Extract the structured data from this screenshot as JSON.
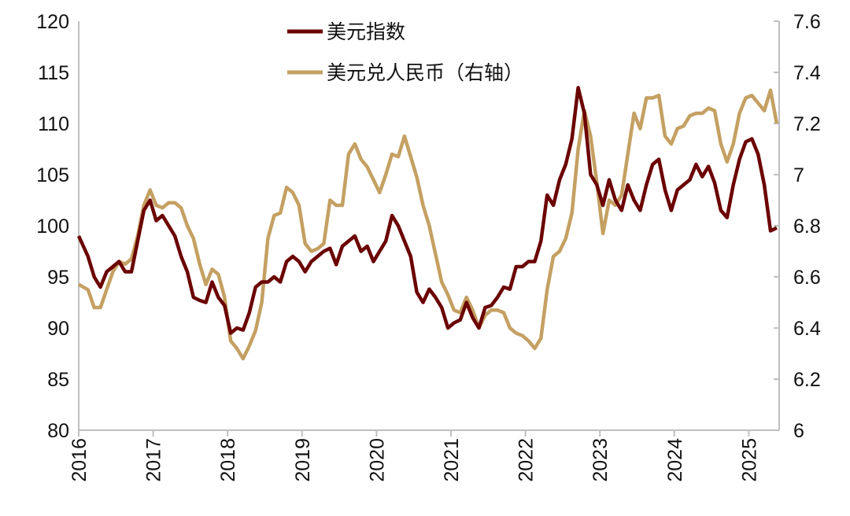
{
  "chart_data": {
    "type": "line",
    "title": "",
    "x_ticks": [
      "2016",
      "2017",
      "2018",
      "2019",
      "2020",
      "2021",
      "2022",
      "2023",
      "2024",
      "2025"
    ],
    "x_range": [
      "2016-01",
      "2025-05"
    ],
    "y_left": {
      "range": [
        80,
        120
      ],
      "ticks": [
        "80",
        "85",
        "90",
        "95",
        "100",
        "105",
        "110",
        "115",
        "120"
      ]
    },
    "y_right": {
      "range": [
        6,
        7.6
      ],
      "ticks": [
        "6",
        "6.2",
        "6.4",
        "6.6",
        "6.8",
        "7",
        "7.2",
        "7.4",
        "7.6"
      ]
    },
    "grid": false,
    "legend_position": "top-center",
    "series": [
      {
        "name": "美元指数",
        "axis": "left",
        "color": "#6b0000",
        "start": "2016-01",
        "frequency": "monthly",
        "values": [
          99,
          97,
          95,
          94,
          95.5,
          96,
          96.5,
          95.5,
          95.5,
          98.5,
          101.5,
          102.5,
          100.5,
          101,
          100,
          99,
          97,
          95.5,
          93,
          92.7,
          92.5,
          94.5,
          93,
          92.2,
          89.5,
          90,
          89.8,
          91.5,
          94,
          94.5,
          94.5,
          95,
          94.5,
          96.5,
          97,
          96.5,
          95.5,
          96.5,
          97,
          97.5,
          97.8,
          96.2,
          98,
          98.5,
          99,
          97.5,
          98,
          96.5,
          97.5,
          98.5,
          101,
          100,
          98.5,
          97,
          93.5,
          92.5,
          93.8,
          93,
          92,
          90,
          90.5,
          90.8,
          92.5,
          91,
          90,
          92,
          92.2,
          93,
          94,
          93.8,
          96,
          96,
          96.5,
          96.5,
          98.5,
          103,
          102,
          104.5,
          106,
          108.5,
          113.5,
          111,
          105,
          104,
          102,
          104.5,
          102.5,
          101.5,
          104,
          102.5,
          101.5,
          104,
          106,
          106.5,
          103.5,
          101.5,
          103.5,
          104,
          104.5,
          106,
          104.8,
          105.8,
          104.2,
          101.5,
          100.8,
          104,
          106.5,
          108.2,
          108.5,
          107,
          104,
          99.5,
          99.8
        ]
      },
      {
        "name": "美元兑人民币（右轴）",
        "axis": "right",
        "color": "#c4a062",
        "start": "2016-01",
        "frequency": "monthly",
        "values": [
          6.57,
          6.55,
          6.48,
          6.48,
          6.55,
          6.62,
          6.66,
          6.65,
          6.67,
          6.76,
          6.88,
          6.94,
          6.88,
          6.87,
          6.89,
          6.89,
          6.87,
          6.8,
          6.75,
          6.65,
          6.57,
          6.63,
          6.61,
          6.52,
          6.35,
          6.32,
          6.28,
          6.33,
          6.39,
          6.5,
          6.75,
          6.84,
          6.85,
          6.95,
          6.93,
          6.88,
          6.73,
          6.7,
          6.71,
          6.73,
          6.9,
          6.88,
          6.88,
          7.08,
          7.12,
          7.06,
          7.03,
          6.98,
          6.93,
          7.0,
          7.08,
          7.07,
          7.15,
          7.07,
          6.99,
          6.88,
          6.8,
          6.69,
          6.58,
          6.53,
          6.47,
          6.46,
          6.52,
          6.47,
          6.4,
          6.45,
          6.47,
          6.47,
          6.46,
          6.4,
          6.38,
          6.37,
          6.35,
          6.32,
          6.36,
          6.55,
          6.68,
          6.7,
          6.75,
          6.85,
          7.1,
          7.25,
          7.15,
          6.97,
          6.77,
          6.9,
          6.88,
          6.92,
          7.08,
          7.24,
          7.18,
          7.3,
          7.3,
          7.31,
          7.15,
          7.12,
          7.18,
          7.19,
          7.23,
          7.24,
          7.24,
          7.26,
          7.25,
          7.12,
          7.05,
          7.12,
          7.24,
          7.3,
          7.31,
          7.28,
          7.25,
          7.33,
          7.2
        ]
      }
    ]
  }
}
